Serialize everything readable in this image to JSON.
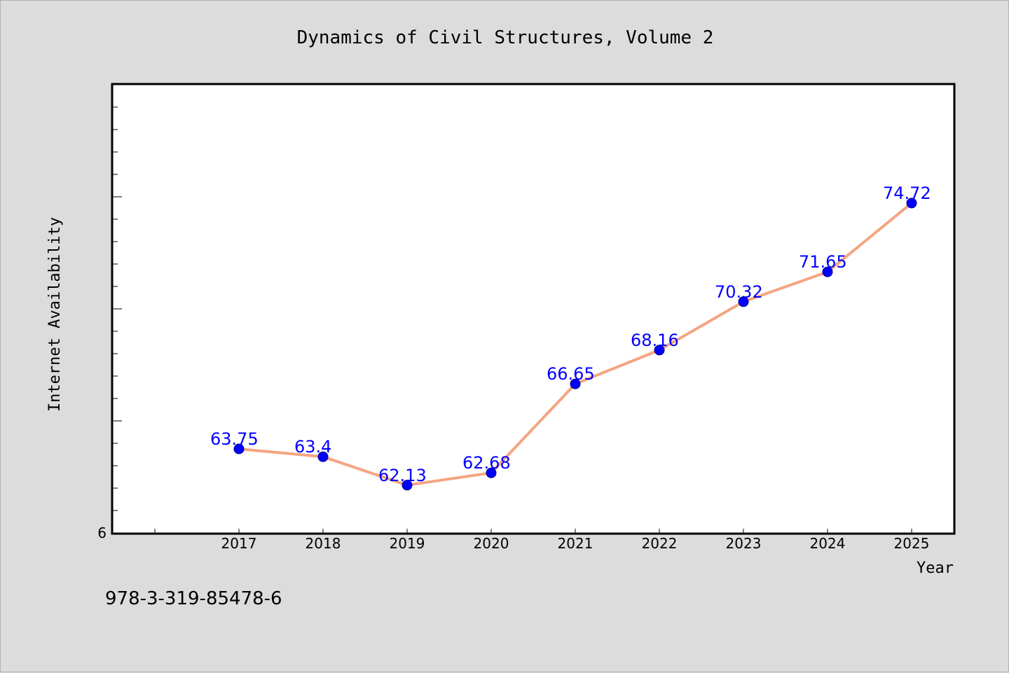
{
  "chart_data": {
    "type": "line",
    "title": "Dynamics of Civil Structures, Volume 2",
    "xlabel": "Year",
    "ylabel": "Internet Availability",
    "categories": [
      "2017",
      "2018",
      "2019",
      "2020",
      "2021",
      "2022",
      "2023",
      "2024",
      "2025"
    ],
    "series": [
      {
        "values": [
          63.75,
          63.4,
          62.13,
          62.68,
          66.65,
          68.16,
          70.32,
          71.65,
          74.72
        ],
        "data_labels": [
          "63.75",
          "63.4",
          "62.13",
          "62.68",
          "66.65",
          "68.16",
          "70.32",
          "71.65",
          "74.72"
        ],
        "line_color": "#f4a582",
        "marker_color": "#0000ff"
      }
    ],
    "y_tick_label": "6",
    "ylim": [
      60,
      80
    ],
    "grid": false,
    "plot_background": "#ffffff",
    "page_background": "#dcdcdc"
  },
  "footer": {
    "isbn": "978-3-319-85478-6"
  }
}
